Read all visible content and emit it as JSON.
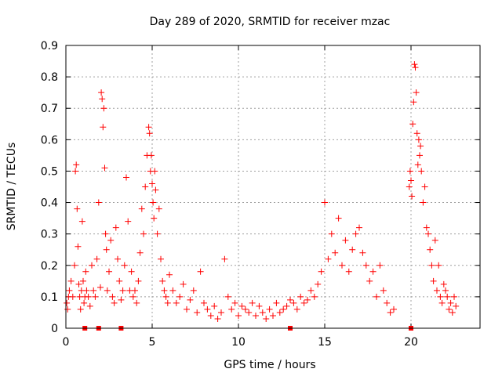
{
  "chart_data": {
    "type": "scatter",
    "title": "Day 289 of 2020, SRMTID for receiver mzac",
    "xlabel": "GPS time / hours",
    "ylabel": "SRMTID / TECUs",
    "xlim": [
      0,
      24
    ],
    "ylim": [
      0,
      0.9
    ],
    "grid": true,
    "xticks": [
      0,
      5,
      10,
      15,
      20
    ],
    "xtick_labels": [
      "0",
      "5",
      "10",
      "15",
      "20"
    ],
    "yticks": [
      0,
      0.1,
      0.2,
      0.3,
      0.4,
      0.5,
      0.6,
      0.7,
      0.8,
      0.9
    ],
    "ytick_labels": [
      "0",
      "0.1",
      "0.2",
      "0.3",
      "0.4",
      "0.5",
      "0.6",
      "0.7",
      "0.8",
      "0.9"
    ],
    "marker_color": "#ff0000",
    "series": [
      {
        "name": "SRMTID (plus markers)",
        "marker": "plus",
        "x": [
          0.05,
          0.1,
          0.15,
          0.2,
          0.3,
          0.4,
          0.5,
          0.55,
          0.6,
          0.65,
          0.7,
          0.75,
          0.8,
          0.85,
          0.9,
          0.95,
          1.0,
          1.05,
          1.1,
          1.15,
          1.2,
          1.3,
          1.4,
          1.5,
          1.6,
          1.7,
          1.8,
          1.9,
          2.0,
          2.05,
          2.1,
          2.15,
          2.2,
          2.25,
          2.3,
          2.35,
          2.4,
          2.5,
          2.6,
          2.7,
          2.8,
          2.9,
          3.0,
          3.1,
          3.2,
          3.3,
          3.4,
          3.5,
          3.6,
          3.7,
          3.8,
          3.9,
          4.0,
          4.1,
          4.2,
          4.3,
          4.4,
          4.5,
          4.6,
          4.7,
          4.8,
          4.85,
          4.9,
          4.95,
          5.0,
          5.05,
          5.1,
          5.15,
          5.2,
          5.3,
          5.4,
          5.5,
          5.6,
          5.7,
          5.8,
          5.9,
          6.0,
          6.2,
          6.4,
          6.6,
          6.8,
          7.0,
          7.2,
          7.4,
          7.6,
          7.8,
          8.0,
          8.2,
          8.4,
          8.6,
          8.8,
          9.0,
          9.2,
          9.4,
          9.6,
          9.8,
          10.0,
          10.2,
          10.4,
          10.6,
          10.8,
          11.0,
          11.2,
          11.4,
          11.6,
          11.8,
          12.0,
          12.2,
          12.4,
          12.6,
          12.8,
          13.0,
          13.2,
          13.4,
          13.6,
          13.8,
          14.0,
          14.2,
          14.4,
          14.6,
          14.8,
          15.0,
          15.2,
          15.4,
          15.6,
          15.8,
          16.0,
          16.2,
          16.4,
          16.6,
          16.8,
          17.0,
          17.2,
          17.4,
          17.6,
          17.8,
          18.0,
          18.2,
          18.4,
          18.6,
          18.8,
          19.0,
          19.9,
          19.95,
          20.0,
          20.05,
          20.1,
          20.15,
          20.2,
          20.25,
          20.3,
          20.35,
          20.4,
          20.45,
          20.5,
          20.55,
          20.6,
          20.7,
          20.8,
          20.9,
          21.0,
          21.1,
          21.2,
          21.3,
          21.4,
          21.5,
          21.6,
          21.7,
          21.8,
          21.9,
          22.0,
          22.1,
          22.2,
          22.3,
          22.4,
          22.5,
          22.6
        ],
        "y": [
          0.08,
          0.06,
          0.1,
          0.12,
          0.15,
          0.1,
          0.2,
          0.5,
          0.52,
          0.38,
          0.26,
          0.14,
          0.1,
          0.06,
          0.12,
          0.34,
          0.15,
          0.08,
          0.1,
          0.18,
          0.12,
          0.1,
          0.07,
          0.2,
          0.12,
          0.1,
          0.22,
          0.4,
          0.13,
          0.75,
          0.73,
          0.64,
          0.7,
          0.51,
          0.3,
          0.25,
          0.12,
          0.18,
          0.28,
          0.1,
          0.08,
          0.32,
          0.22,
          0.15,
          0.09,
          0.12,
          0.2,
          0.48,
          0.34,
          0.12,
          0.18,
          0.1,
          0.12,
          0.08,
          0.15,
          0.24,
          0.38,
          0.3,
          0.45,
          0.55,
          0.64,
          0.62,
          0.5,
          0.55,
          0.46,
          0.4,
          0.35,
          0.5,
          0.44,
          0.3,
          0.38,
          0.22,
          0.15,
          0.12,
          0.1,
          0.08,
          0.17,
          0.12,
          0.08,
          0.1,
          0.14,
          0.06,
          0.09,
          0.12,
          0.05,
          0.18,
          0.08,
          0.06,
          0.04,
          0.07,
          0.03,
          0.05,
          0.22,
          0.1,
          0.06,
          0.08,
          0.04,
          0.07,
          0.06,
          0.05,
          0.08,
          0.04,
          0.07,
          0.05,
          0.03,
          0.06,
          0.04,
          0.08,
          0.05,
          0.06,
          0.07,
          0.09,
          0.08,
          0.06,
          0.1,
          0.08,
          0.09,
          0.12,
          0.1,
          0.14,
          0.18,
          0.4,
          0.22,
          0.3,
          0.24,
          0.35,
          0.2,
          0.28,
          0.18,
          0.25,
          0.3,
          0.32,
          0.24,
          0.2,
          0.15,
          0.18,
          0.1,
          0.2,
          0.12,
          0.08,
          0.05,
          0.06,
          0.45,
          0.5,
          0.47,
          0.42,
          0.65,
          0.72,
          0.84,
          0.83,
          0.75,
          0.62,
          0.52,
          0.6,
          0.55,
          0.58,
          0.5,
          0.4,
          0.45,
          0.32,
          0.3,
          0.25,
          0.2,
          0.15,
          0.28,
          0.12,
          0.2,
          0.1,
          0.08,
          0.14,
          0.12,
          0.1,
          0.06,
          0.08,
          0.05,
          0.1,
          0.07
        ]
      },
      {
        "name": "Zero markers",
        "marker": "square",
        "x": [
          1.1,
          1.9,
          3.2,
          13.0,
          20.0
        ],
        "y": [
          0,
          0,
          0,
          0,
          0
        ]
      }
    ]
  }
}
